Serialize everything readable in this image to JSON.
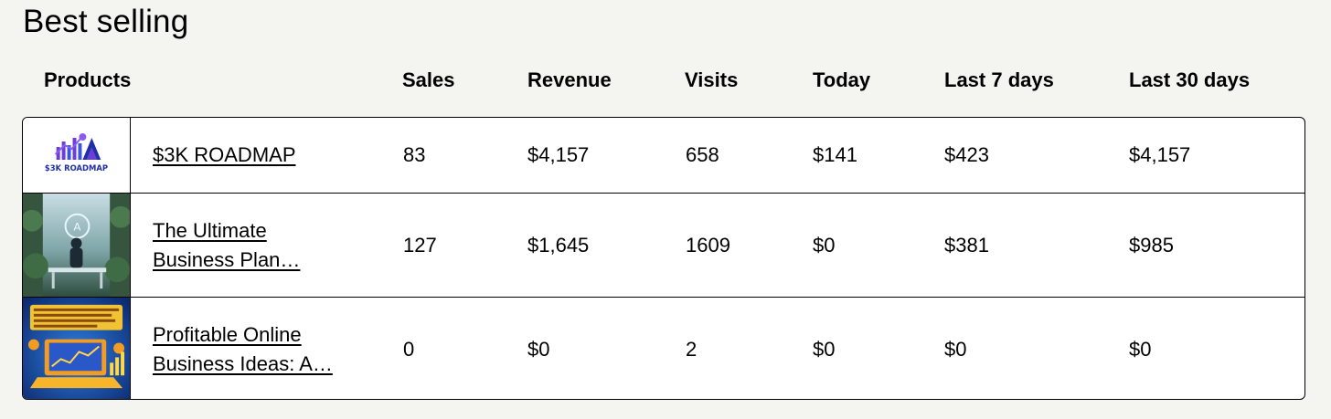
{
  "section": {
    "title": "Best selling"
  },
  "columns": {
    "products": "Products",
    "sales": "Sales",
    "revenue": "Revenue",
    "visits": "Visits",
    "today": "Today",
    "last7": "Last 7 days",
    "last30": "Last 30 days"
  },
  "rows": [
    {
      "name_line1": "$3K ROADMAP",
      "name_line2": "",
      "thumb_text": "$3K ROADMAP",
      "sales": "83",
      "revenue": "$4,157",
      "visits": "658",
      "today": "$141",
      "last7": "$423",
      "last30": "$4,157"
    },
    {
      "name_line1": "The Ultimate",
      "name_line2": "Business Plan…",
      "sales": "127",
      "revenue": "$1,645",
      "visits": "1609",
      "today": "$0",
      "last7": "$381",
      "last30": "$985"
    },
    {
      "name_line1": "Profitable Online",
      "name_line2": "Business Ideas: A…",
      "sales": "0",
      "revenue": "$0",
      "visits": "2",
      "today": "$0",
      "last7": "$0",
      "last30": "$0"
    }
  ],
  "colors": {
    "background": "#f4f4f0",
    "table_bg": "#ffffff",
    "border": "#000000",
    "logo_purple": "#6b3fd6",
    "logo_blue": "#1f2fa8"
  }
}
